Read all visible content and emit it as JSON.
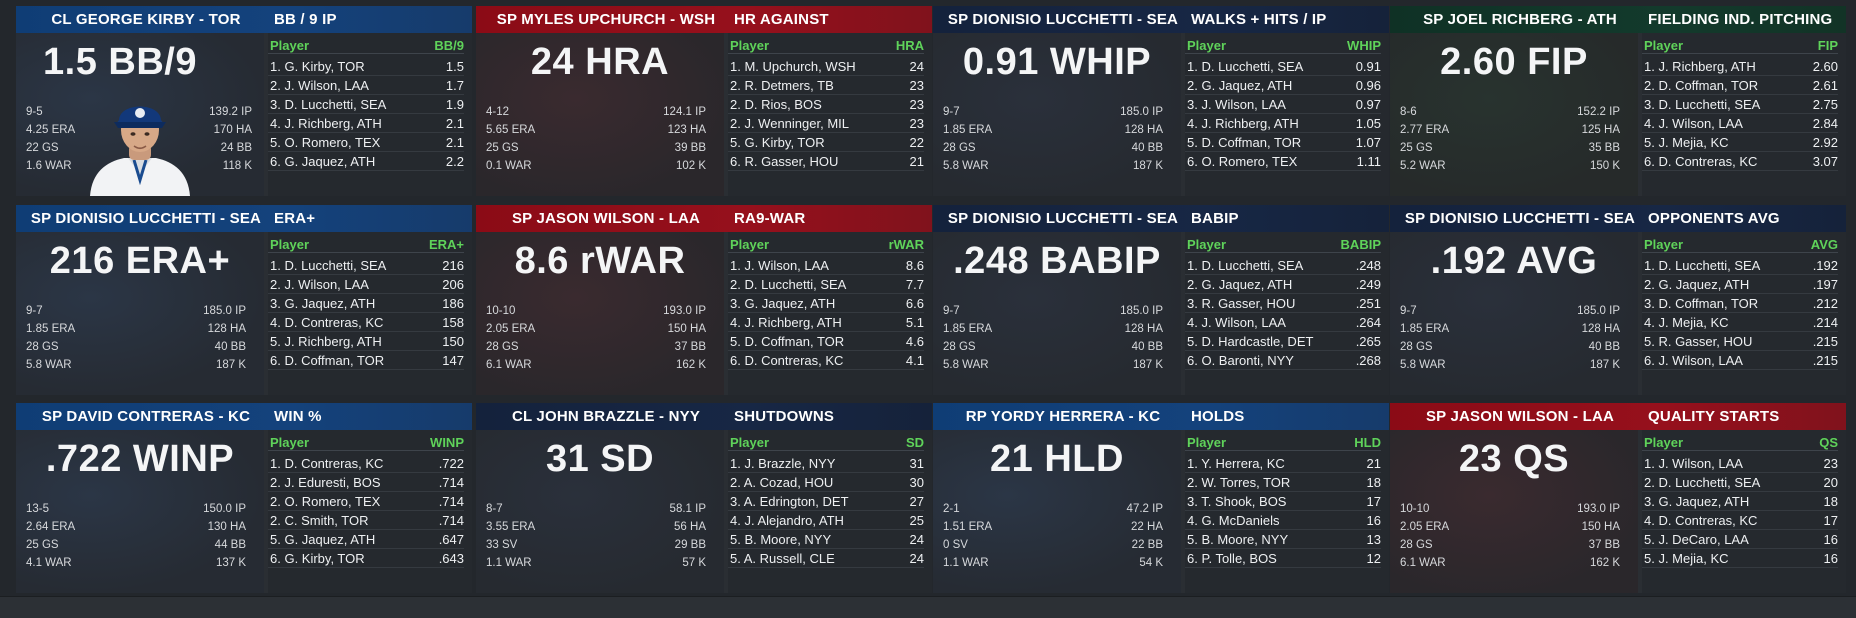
{
  "cards": [
    {
      "name": "CL GEORGE KIRBY - TOR",
      "stat_title": "BB / 9 IP",
      "big": "1.5 BB/9",
      "theme": "blue",
      "left_lines": [
        "9-5",
        "4.25 ERA",
        "22 GS",
        "1.6 WAR"
      ],
      "right_lines": [
        "139.2 IP",
        "170 HA",
        "24 BB",
        "118 K"
      ],
      "col_player": "Player",
      "col_value": "BB/9",
      "rows": [
        {
          "n": "1. G. Kirby, TOR",
          "v": "1.5"
        },
        {
          "n": "2. J. Wilson, LAA",
          "v": "1.7"
        },
        {
          "n": "3. D. Lucchetti, SEA",
          "v": "1.9"
        },
        {
          "n": "4. J. Richberg, ATH",
          "v": "2.1"
        },
        {
          "n": "5. O. Romero, TEX",
          "v": "2.1"
        },
        {
          "n": "6. G. Jaquez, ATH",
          "v": "2.2"
        }
      ]
    },
    {
      "name": "SP MYLES UPCHURCH - WSH",
      "stat_title": "HR AGAINST",
      "big": "24 HRA",
      "theme": "red",
      "left_lines": [
        "4-12",
        "5.65 ERA",
        "25 GS",
        "0.1 WAR"
      ],
      "right_lines": [
        "124.1 IP",
        "123 HA",
        "39 BB",
        "102 K"
      ],
      "col_player": "Player",
      "col_value": "HRA",
      "rows": [
        {
          "n": "1. M. Upchurch, WSH",
          "v": "24"
        },
        {
          "n": "2. R. Detmers, TB",
          "v": "23"
        },
        {
          "n": "2. D. Rios, BOS",
          "v": "23"
        },
        {
          "n": "2. J. Wenninger, MIL",
          "v": "23"
        },
        {
          "n": "5. G. Kirby, TOR",
          "v": "22"
        },
        {
          "n": "6. R. Gasser, HOU",
          "v": "21"
        }
      ]
    },
    {
      "name": "SP DIONISIO LUCCHETTI - SEA",
      "stat_title": "WALKS + HITS / IP",
      "big": "0.91 WHIP",
      "theme": "navy",
      "left_lines": [
        "9-7",
        "1.85 ERA",
        "28 GS",
        "5.8 WAR"
      ],
      "right_lines": [
        "185.0 IP",
        "128 HA",
        "40 BB",
        "187 K"
      ],
      "col_player": "Player",
      "col_value": "WHIP",
      "rows": [
        {
          "n": "1. D. Lucchetti, SEA",
          "v": "0.91"
        },
        {
          "n": "2. G. Jaquez, ATH",
          "v": "0.96"
        },
        {
          "n": "3. J. Wilson, LAA",
          "v": "0.97"
        },
        {
          "n": "4. J. Richberg, ATH",
          "v": "1.05"
        },
        {
          "n": "5. D. Coffman, TOR",
          "v": "1.07"
        },
        {
          "n": "6. O. Romero, TEX",
          "v": "1.11"
        }
      ]
    },
    {
      "name": "SP JOEL RICHBERG - ATH",
      "stat_title": "FIELDING IND. PITCHING",
      "big": "2.60 FIP",
      "theme": "green",
      "left_lines": [
        "8-6",
        "2.77 ERA",
        "25 GS",
        "5.2 WAR"
      ],
      "right_lines": [
        "152.2 IP",
        "125 HA",
        "35 BB",
        "150 K"
      ],
      "col_player": "Player",
      "col_value": "FIP",
      "rows": [
        {
          "n": "1. J. Richberg, ATH",
          "v": "2.60"
        },
        {
          "n": "2. D. Coffman, TOR",
          "v": "2.61"
        },
        {
          "n": "3. D. Lucchetti, SEA",
          "v": "2.75"
        },
        {
          "n": "4. J. Wilson, LAA",
          "v": "2.84"
        },
        {
          "n": "5. J. Mejia, KC",
          "v": "2.92"
        },
        {
          "n": "6. D. Contreras, KC",
          "v": "3.07"
        }
      ]
    },
    {
      "name": "SP DIONISIO LUCCHETTI - SEA",
      "stat_title": "ERA+",
      "big": "216 ERA+",
      "theme": "blue",
      "left_lines": [
        "9-7",
        "1.85 ERA",
        "28 GS",
        "5.8 WAR"
      ],
      "right_lines": [
        "185.0 IP",
        "128 HA",
        "40 BB",
        "187 K"
      ],
      "col_player": "Player",
      "col_value": "ERA+",
      "rows": [
        {
          "n": "1. D. Lucchetti, SEA",
          "v": "216"
        },
        {
          "n": "2. J. Wilson, LAA",
          "v": "206"
        },
        {
          "n": "3. G. Jaquez, ATH",
          "v": "186"
        },
        {
          "n": "4. D. Contreras, KC",
          "v": "158"
        },
        {
          "n": "5. J. Richberg, ATH",
          "v": "150"
        },
        {
          "n": "6. D. Coffman, TOR",
          "v": "147"
        }
      ]
    },
    {
      "name": "SP JASON WILSON - LAA",
      "stat_title": "RA9-WAR",
      "big": "8.6 rWAR",
      "theme": "red",
      "left_lines": [
        "10-10",
        "2.05 ERA",
        "28 GS",
        "6.1 WAR"
      ],
      "right_lines": [
        "193.0 IP",
        "150 HA",
        "37 BB",
        "162 K"
      ],
      "col_player": "Player",
      "col_value": "rWAR",
      "rows": [
        {
          "n": "1. J. Wilson, LAA",
          "v": "8.6"
        },
        {
          "n": "2. D. Lucchetti, SEA",
          "v": "7.7"
        },
        {
          "n": "3. G. Jaquez, ATH",
          "v": "6.6"
        },
        {
          "n": "4. J. Richberg, ATH",
          "v": "5.1"
        },
        {
          "n": "5. D. Coffman, TOR",
          "v": "4.6"
        },
        {
          "n": "6. D. Contreras, KC",
          "v": "4.1"
        }
      ]
    },
    {
      "name": "SP DIONISIO LUCCHETTI - SEA",
      "stat_title": "BABIP",
      "big": ".248 BABIP",
      "theme": "navy",
      "left_lines": [
        "9-7",
        "1.85 ERA",
        "28 GS",
        "5.8 WAR"
      ],
      "right_lines": [
        "185.0 IP",
        "128 HA",
        "40 BB",
        "187 K"
      ],
      "col_player": "Player",
      "col_value": "BABIP",
      "rows": [
        {
          "n": "1. D. Lucchetti, SEA",
          "v": ".248"
        },
        {
          "n": "2. G. Jaquez, ATH",
          "v": ".249"
        },
        {
          "n": "3. R. Gasser, HOU",
          "v": ".251"
        },
        {
          "n": "4. J. Wilson, LAA",
          "v": ".264"
        },
        {
          "n": "5. D. Hardcastle, DET",
          "v": ".265"
        },
        {
          "n": "6. O. Baronti, NYY",
          "v": ".268"
        }
      ]
    },
    {
      "name": "SP DIONISIO LUCCHETTI - SEA",
      "stat_title": "OPPONENTS AVG",
      "big": ".192 AVG",
      "theme": "navy",
      "left_lines": [
        "9-7",
        "1.85 ERA",
        "28 GS",
        "5.8 WAR"
      ],
      "right_lines": [
        "185.0 IP",
        "128 HA",
        "40 BB",
        "187 K"
      ],
      "col_player": "Player",
      "col_value": "AVG",
      "rows": [
        {
          "n": "1. D. Lucchetti, SEA",
          "v": ".192"
        },
        {
          "n": "2. G. Jaquez, ATH",
          "v": ".197"
        },
        {
          "n": "3. D. Coffman, TOR",
          "v": ".212"
        },
        {
          "n": "4. J. Mejia, KC",
          "v": ".214"
        },
        {
          "n": "5. R. Gasser, HOU",
          "v": ".215"
        },
        {
          "n": "6. J. Wilson, LAA",
          "v": ".215"
        }
      ]
    },
    {
      "name": "SP DAVID CONTRERAS - KC",
      "stat_title": "WIN %",
      "big": ".722 WINP",
      "theme": "blue",
      "left_lines": [
        "13-5",
        "2.64 ERA",
        "25 GS",
        "4.1 WAR"
      ],
      "right_lines": [
        "150.0 IP",
        "130 HA",
        "44 BB",
        "137 K"
      ],
      "col_player": "Player",
      "col_value": "WINP",
      "rows": [
        {
          "n": "1. D. Contreras, KC",
          "v": ".722"
        },
        {
          "n": "2. J. Eduresti, BOS",
          "v": ".714"
        },
        {
          "n": "2. O. Romero, TEX",
          "v": ".714"
        },
        {
          "n": "2. C. Smith, TOR",
          "v": ".714"
        },
        {
          "n": "5. G. Jaquez, ATH",
          "v": ".647"
        },
        {
          "n": "6. G. Kirby, TOR",
          "v": ".643"
        }
      ]
    },
    {
      "name": "CL JOHN BRAZZLE - NYY",
      "stat_title": "SHUTDOWNS",
      "big": "31 SD",
      "theme": "navy",
      "left_lines": [
        "8-7",
        "3.55 ERA",
        "33 SV",
        "1.1 WAR"
      ],
      "right_lines": [
        "58.1 IP",
        "56 HA",
        "29 BB",
        "57 K"
      ],
      "col_player": "Player",
      "col_value": "SD",
      "rows": [
        {
          "n": "1. J. Brazzle, NYY",
          "v": "31"
        },
        {
          "n": "2. A. Cozad, HOU",
          "v": "30"
        },
        {
          "n": "3. A. Edrington, DET",
          "v": "27"
        },
        {
          "n": "4. J. Alejandro, ATH",
          "v": "25"
        },
        {
          "n": "5. B. Moore, NYY",
          "v": "24"
        },
        {
          "n": "5. A. Russell, CLE",
          "v": "24"
        }
      ]
    },
    {
      "name": "RP YORDY HERRERA - KC",
      "stat_title": "HOLDS",
      "big": "21 HLD",
      "theme": "blue",
      "left_lines": [
        "2-1",
        "1.51 ERA",
        "0 SV",
        "1.1 WAR"
      ],
      "right_lines": [
        "47.2 IP",
        "22 HA",
        "22 BB",
        "54 K"
      ],
      "col_player": "Player",
      "col_value": "HLD",
      "rows": [
        {
          "n": "1. Y. Herrera, KC",
          "v": "21"
        },
        {
          "n": "2. W. Torres, TOR",
          "v": "18"
        },
        {
          "n": "3. T. Shook, BOS",
          "v": "17"
        },
        {
          "n": "4. G. McDaniels",
          "v": "16"
        },
        {
          "n": "5. B. Moore, NYY",
          "v": "13"
        },
        {
          "n": "6. P. Tolle, BOS",
          "v": "12"
        }
      ]
    },
    {
      "name": "SP JASON WILSON - LAA",
      "stat_title": "QUALITY STARTS",
      "big": "23 QS",
      "theme": "red",
      "left_lines": [
        "10-10",
        "2.05 ERA",
        "28 GS",
        "6.1 WAR"
      ],
      "right_lines": [
        "193.0 IP",
        "150 HA",
        "37 BB",
        "162 K"
      ],
      "col_player": "Player",
      "col_value": "QS",
      "rows": [
        {
          "n": "1. J. Wilson, LAA",
          "v": "23"
        },
        {
          "n": "2. D. Lucchetti, SEA",
          "v": "20"
        },
        {
          "n": "3. G. Jaquez, ATH",
          "v": "18"
        },
        {
          "n": "4. D. Contreras, KC",
          "v": "17"
        },
        {
          "n": "5. J. DeCaro, LAA",
          "v": "16"
        },
        {
          "n": "5. J. Mejia, KC",
          "v": "16"
        }
      ]
    }
  ]
}
